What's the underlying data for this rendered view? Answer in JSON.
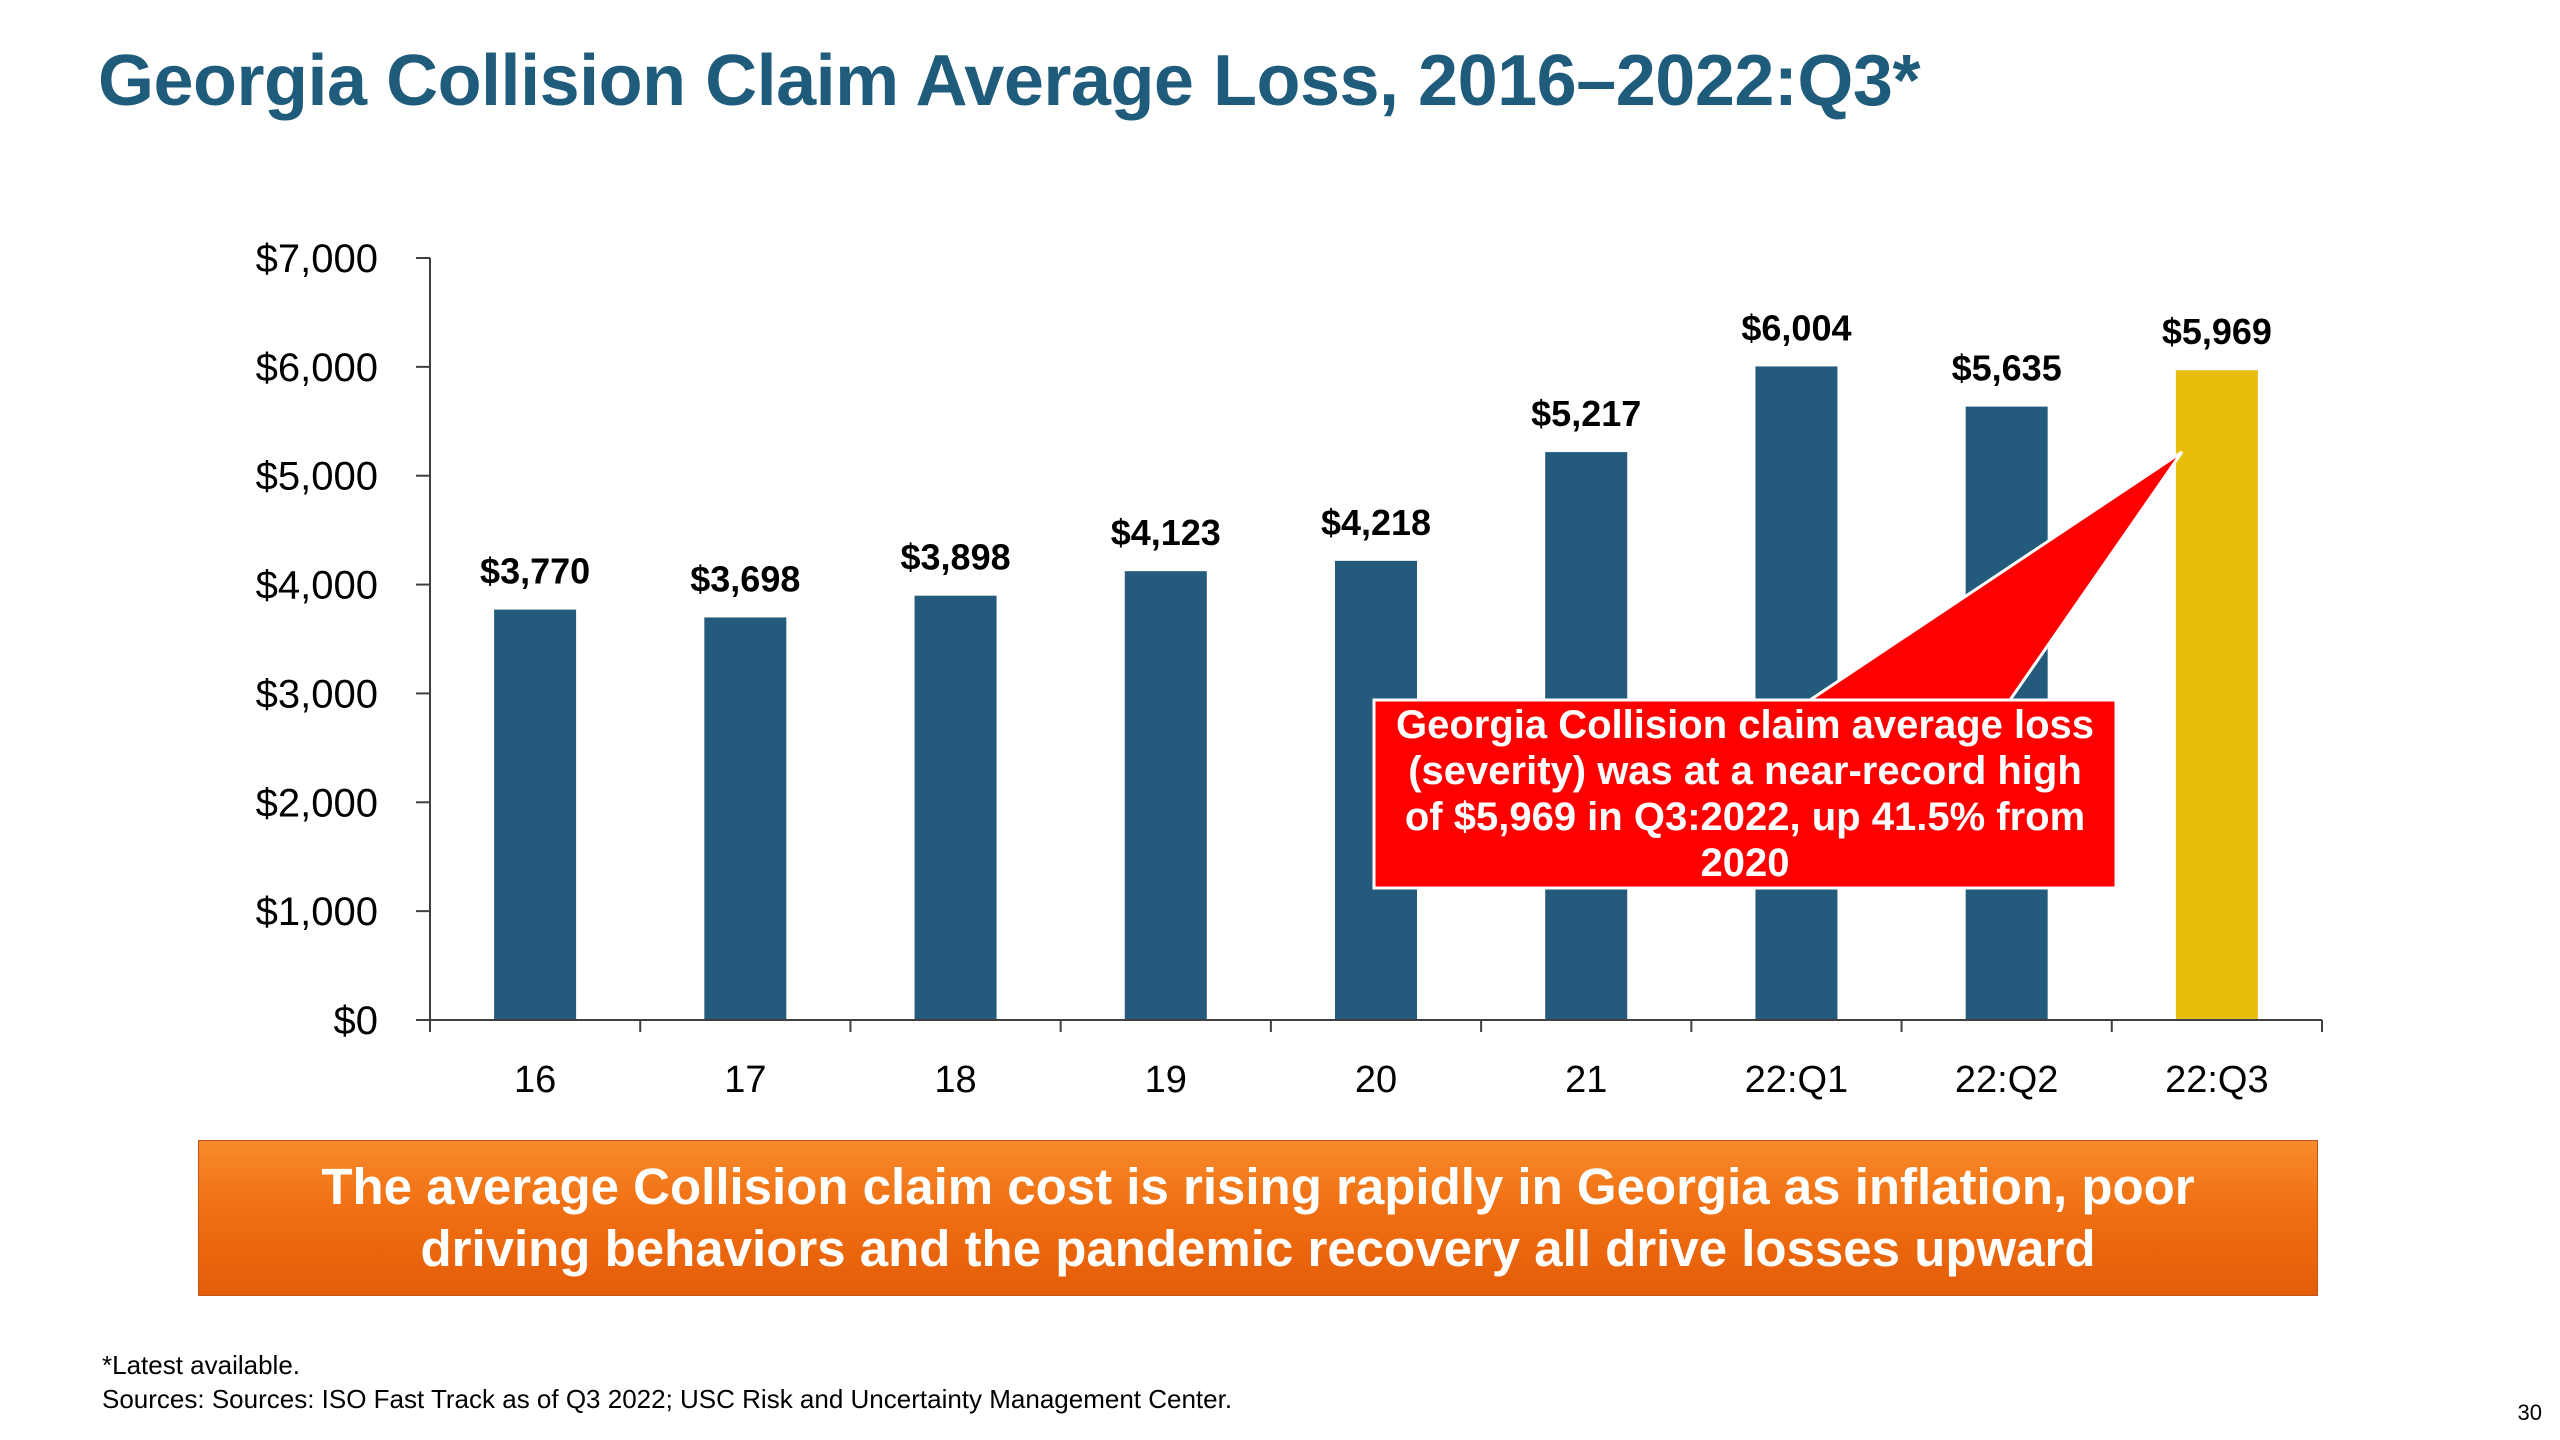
{
  "title": "Georgia Collision Claim Average Loss, 2016–2022:Q3*",
  "chart_data": {
    "type": "bar",
    "categories": [
      "16",
      "17",
      "18",
      "19",
      "20",
      "21",
      "22:Q1",
      "22:Q2",
      "22:Q3"
    ],
    "values": [
      3770,
      3698,
      3898,
      4123,
      4218,
      5217,
      6004,
      5635,
      5969
    ],
    "data_labels": [
      "$3,770",
      "$3,698",
      "$3,898",
      "$4,123",
      "$4,218",
      "$5,217",
      "$6,004",
      "$5,635",
      "$5,969"
    ],
    "y_ticks": [
      0,
      1000,
      2000,
      3000,
      4000,
      5000,
      6000,
      7000
    ],
    "y_tick_labels": [
      "$0",
      "$1,000",
      "$2,000",
      "$3,000",
      "$4,000",
      "$5,000",
      "$6,000",
      "$7,000"
    ],
    "ylim": [
      0,
      7000
    ],
    "grid": false,
    "colors": {
      "bar": "#245b7c",
      "highlight_bar": "#e9be0b",
      "axis": "#404040"
    },
    "highlight_index": 8
  },
  "callout": {
    "text": "Georgia Collision claim average loss (severity) was at a near-record high of $5,969 in Q3:2022, up 41.5% from 2020",
    "color": "#ff0000"
  },
  "banner": {
    "text": "The average Collision claim cost is rising rapidly in Georgia as inflation, poor driving behaviors and the pandemic recovery all drive losses upward"
  },
  "footnote": "*Latest available.",
  "sources": "Sources: Sources: ISO Fast Track as of Q3 2022; USC Risk and Uncertainty Management Center.",
  "page_number": "30"
}
